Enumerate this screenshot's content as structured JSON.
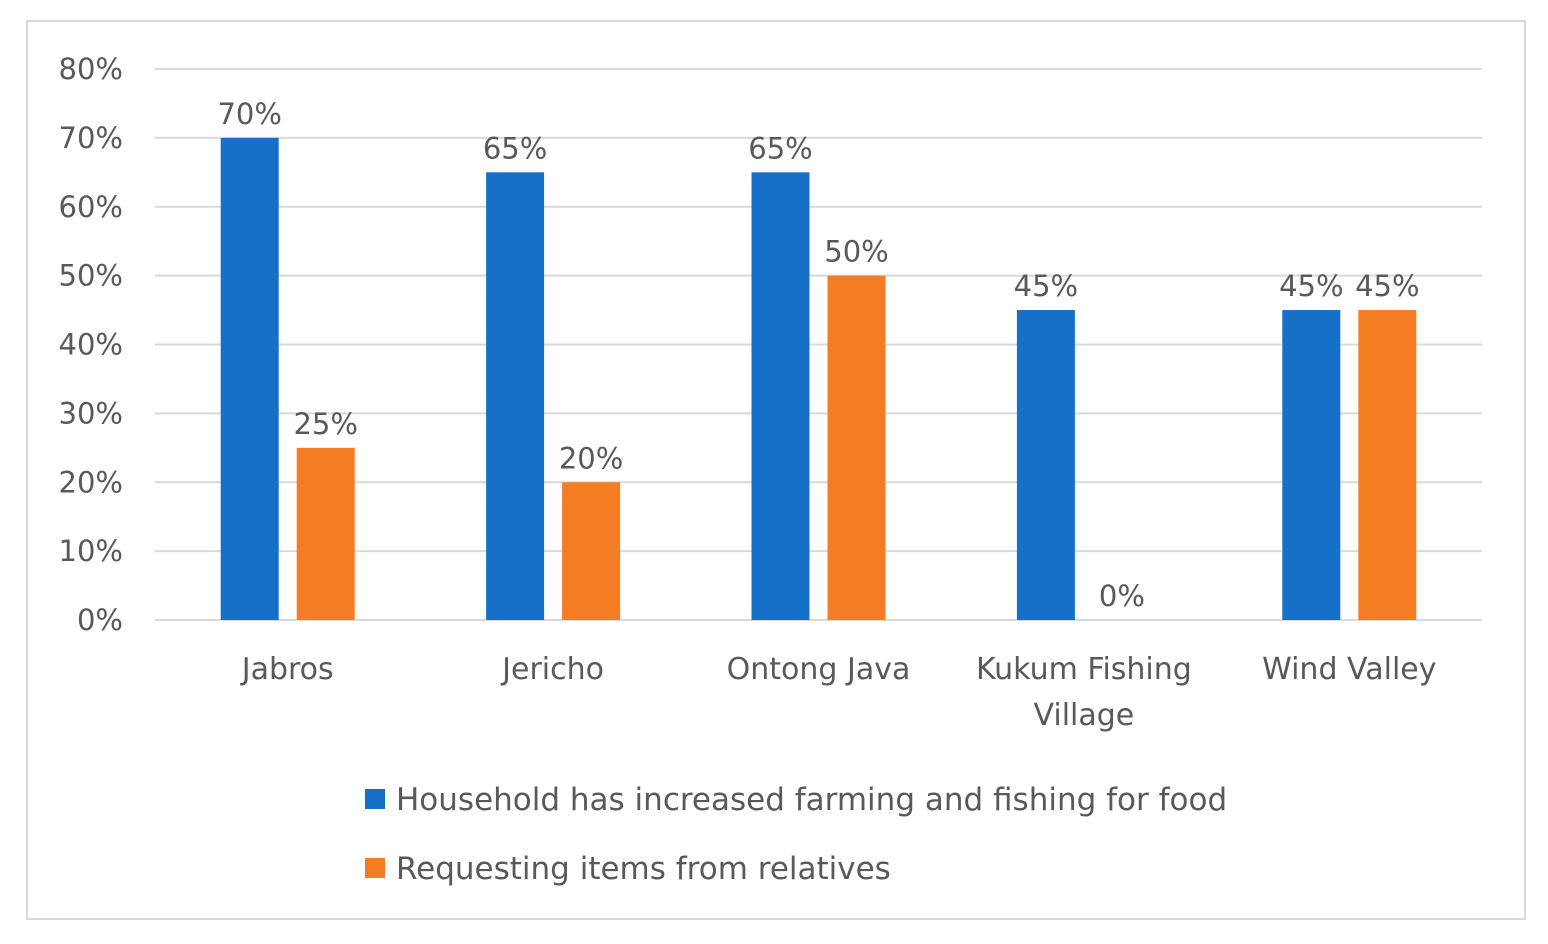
{
  "chart_data": {
    "type": "bar",
    "title": "",
    "xlabel": "",
    "ylabel": "",
    "ylim": [
      0,
      80
    ],
    "yticks": [
      0,
      10,
      20,
      30,
      40,
      50,
      60,
      70,
      80
    ],
    "ytick_labels": [
      "0%",
      "10%",
      "20%",
      "30%",
      "40%",
      "50%",
      "60%",
      "70%",
      "80%"
    ],
    "grid": true,
    "categories": [
      [
        "Jabros"
      ],
      [
        "Jericho"
      ],
      [
        "Ontong Java"
      ],
      [
        "Kukum Fishing",
        "Village"
      ],
      [
        "Wind Valley"
      ]
    ],
    "series": [
      {
        "name": "Household has increased farming and fishing for food",
        "color": "#1670c8",
        "values": [
          70,
          65,
          65,
          45,
          45
        ],
        "labels": [
          "70%",
          "65%",
          "65%",
          "45%",
          "45%"
        ]
      },
      {
        "name": "Requesting items from relatives",
        "color": "#f47d23",
        "values": [
          25,
          20,
          50,
          0,
          45
        ],
        "labels": [
          "25%",
          "20%",
          "50%",
          "0%",
          "45%"
        ]
      }
    ],
    "legend_position": "bottom"
  }
}
